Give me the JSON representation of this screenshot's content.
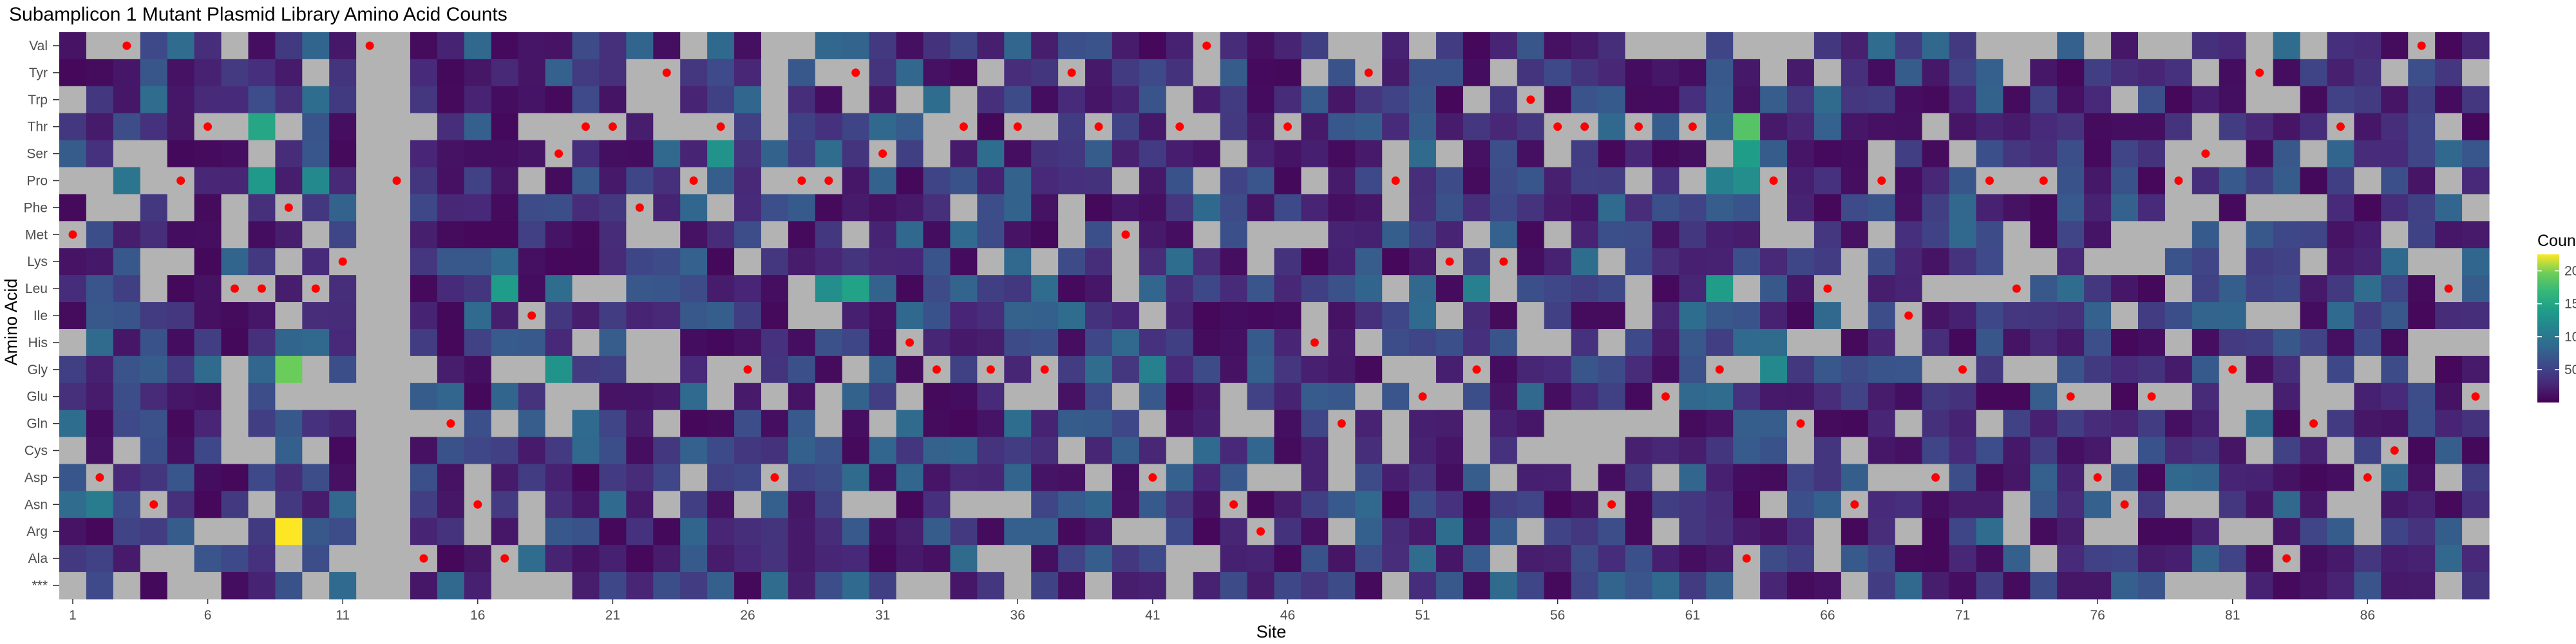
{
  "chart_data": {
    "type": "heatmap",
    "title": "Subamplicon 1 Mutant Plasmid Library Amino Acid Counts",
    "xlabel": "Site",
    "ylabel": "Amino Acid",
    "x_range": [
      1,
      90
    ],
    "x_tick_labels": [
      "1",
      "6",
      "11",
      "16",
      "21",
      "26",
      "31",
      "36",
      "41",
      "46",
      "51",
      "56",
      "61",
      "66",
      "71",
      "76",
      "81",
      "86"
    ],
    "y_categories": [
      "Val",
      "Tyr",
      "Trp",
      "Thr",
      "Ser",
      "Pro",
      "Phe",
      "Met",
      "Lys",
      "Leu",
      "Ile",
      "His",
      "Gly",
      "Glu",
      "Gln",
      "Cys",
      "Asp",
      "Asn",
      "Arg",
      "Ala",
      "***"
    ],
    "legend": {
      "title": "Count",
      "ticks": [
        50,
        100,
        150,
        200
      ],
      "range": [
        0,
        225
      ],
      "colormap": "viridis",
      "position": "right"
    },
    "colors": {
      "missing": "#b3b3b3",
      "wildtype_dot": "#ff0000"
    },
    "counts_note": "Cell counts range 0–225; gray cells are zero / not observed.",
    "wildtype_marks": [
      {
        "site": 1,
        "aa": "Met"
      },
      {
        "site": 2,
        "aa": "Asp"
      },
      {
        "site": 3,
        "aa": "Val"
      },
      {
        "site": 4,
        "aa": "Asn"
      },
      {
        "site": 5,
        "aa": "Pro"
      },
      {
        "site": 6,
        "aa": "Thr"
      },
      {
        "site": 7,
        "aa": "Leu"
      },
      {
        "site": 8,
        "aa": "Leu"
      },
      {
        "site": 9,
        "aa": "Phe"
      },
      {
        "site": 10,
        "aa": "Leu"
      },
      {
        "site": 11,
        "aa": "Lys"
      },
      {
        "site": 12,
        "aa": "Val"
      },
      {
        "site": 13,
        "aa": "Pro"
      },
      {
        "site": 14,
        "aa": "Ala"
      },
      {
        "site": 15,
        "aa": "Gln"
      },
      {
        "site": 16,
        "aa": "Asn"
      },
      {
        "site": 17,
        "aa": "Ala"
      },
      {
        "site": 18,
        "aa": "Ile"
      },
      {
        "site": 19,
        "aa": "Ser"
      },
      {
        "site": 20,
        "aa": "Thr"
      },
      {
        "site": 21,
        "aa": "Thr"
      },
      {
        "site": 22,
        "aa": "Phe"
      },
      {
        "site": 23,
        "aa": "Tyr"
      },
      {
        "site": 24,
        "aa": "Pro"
      },
      {
        "site": 25,
        "aa": "Thr"
      },
      {
        "site": 26,
        "aa": "Gly"
      },
      {
        "site": 27,
        "aa": "Asp"
      },
      {
        "site": 28,
        "aa": "Pro"
      },
      {
        "site": 29,
        "aa": "Pro"
      },
      {
        "site": 30,
        "aa": "Tyr"
      },
      {
        "site": 31,
        "aa": "Ser"
      },
      {
        "site": 32,
        "aa": "His"
      },
      {
        "site": 33,
        "aa": "Gly"
      },
      {
        "site": 34,
        "aa": "Thr"
      },
      {
        "site": 35,
        "aa": "Gly"
      },
      {
        "site": 36,
        "aa": "Thr"
      },
      {
        "site": 37,
        "aa": "Gly"
      },
      {
        "site": 38,
        "aa": "Tyr"
      },
      {
        "site": 39,
        "aa": "Thr"
      },
      {
        "site": 40,
        "aa": "Met"
      },
      {
        "site": 41,
        "aa": "Asp"
      },
      {
        "site": 42,
        "aa": "Thr"
      },
      {
        "site": 43,
        "aa": "Val"
      },
      {
        "site": 44,
        "aa": "Asn"
      },
      {
        "site": 45,
        "aa": "Arg"
      },
      {
        "site": 46,
        "aa": "Thr"
      },
      {
        "site": 47,
        "aa": "His"
      },
      {
        "site": 48,
        "aa": "Gln"
      },
      {
        "site": 49,
        "aa": "Tyr"
      },
      {
        "site": 50,
        "aa": "Pro"
      },
      {
        "site": 51,
        "aa": "Glu"
      },
      {
        "site": 52,
        "aa": "Lys"
      },
      {
        "site": 53,
        "aa": "Gly"
      },
      {
        "site": 54,
        "aa": "Lys"
      },
      {
        "site": 55,
        "aa": "Trp"
      },
      {
        "site": 56,
        "aa": "Thr"
      },
      {
        "site": 57,
        "aa": "Thr"
      },
      {
        "site": 58,
        "aa": "Asn"
      },
      {
        "site": 59,
        "aa": "Thr"
      },
      {
        "site": 60,
        "aa": "Glu"
      },
      {
        "site": 61,
        "aa": "Thr"
      },
      {
        "site": 62,
        "aa": "Gly"
      },
      {
        "site": 63,
        "aa": "Ala"
      },
      {
        "site": 64,
        "aa": "Pro"
      },
      {
        "site": 65,
        "aa": "Gln"
      },
      {
        "site": 66,
        "aa": "Leu"
      },
      {
        "site": 67,
        "aa": "Asn"
      },
      {
        "site": 68,
        "aa": "Pro"
      },
      {
        "site": 69,
        "aa": "Ile"
      },
      {
        "site": 70,
        "aa": "Asp"
      },
      {
        "site": 71,
        "aa": "Gly"
      },
      {
        "site": 72,
        "aa": "Pro"
      },
      {
        "site": 73,
        "aa": "Leu"
      },
      {
        "site": 74,
        "aa": "Pro"
      },
      {
        "site": 75,
        "aa": "Glu"
      },
      {
        "site": 76,
        "aa": "Asp"
      },
      {
        "site": 77,
        "aa": "Asn"
      },
      {
        "site": 78,
        "aa": "Glu"
      },
      {
        "site": 79,
        "aa": "Pro"
      },
      {
        "site": 80,
        "aa": "Ser"
      },
      {
        "site": 81,
        "aa": "Gly"
      },
      {
        "site": 82,
        "aa": "Tyr"
      },
      {
        "site": 83,
        "aa": "Ala"
      },
      {
        "site": 84,
        "aa": "Gln"
      },
      {
        "site": 85,
        "aa": "Thr"
      },
      {
        "site": 86,
        "aa": "Asp"
      },
      {
        "site": 87,
        "aa": "Cys"
      },
      {
        "site": 88,
        "aa": "Val"
      },
      {
        "site": 89,
        "aa": "Leu"
      },
      {
        "site": 90,
        "aa": "Glu"
      }
    ],
    "highlight_cells": [
      {
        "site": 9,
        "aa": "Arg",
        "count": 225
      },
      {
        "site": 9,
        "aa": "Gly",
        "count": 195
      },
      {
        "site": 63,
        "aa": "Thr",
        "count": 185
      },
      {
        "site": 8,
        "aa": "Thr",
        "count": 150
      },
      {
        "site": 30,
        "aa": "Leu",
        "count": 145
      },
      {
        "site": 63,
        "aa": "Ser",
        "count": 140
      },
      {
        "site": 62,
        "aa": "Leu",
        "count": 140
      },
      {
        "site": 17,
        "aa": "Leu",
        "count": 140
      },
      {
        "site": 8,
        "aa": "Pro",
        "count": 135
      },
      {
        "site": 25,
        "aa": "Ser",
        "count": 130
      },
      {
        "site": 19,
        "aa": "Gly",
        "count": 130
      },
      {
        "site": 29,
        "aa": "Leu",
        "count": 125
      },
      {
        "site": 63,
        "aa": "Pro",
        "count": 125
      },
      {
        "site": 64,
        "aa": "Gly",
        "count": 120
      },
      {
        "site": 10,
        "aa": "Pro",
        "count": 120
      },
      {
        "site": 53,
        "aa": "Leu",
        "count": 110
      },
      {
        "site": 41,
        "aa": "Gly",
        "count": 110
      },
      {
        "site": 62,
        "aa": "Pro",
        "count": 110
      },
      {
        "site": 2,
        "aa": "Asn",
        "count": 105
      },
      {
        "site": 3,
        "aa": "Pro",
        "count": 100
      }
    ]
  }
}
